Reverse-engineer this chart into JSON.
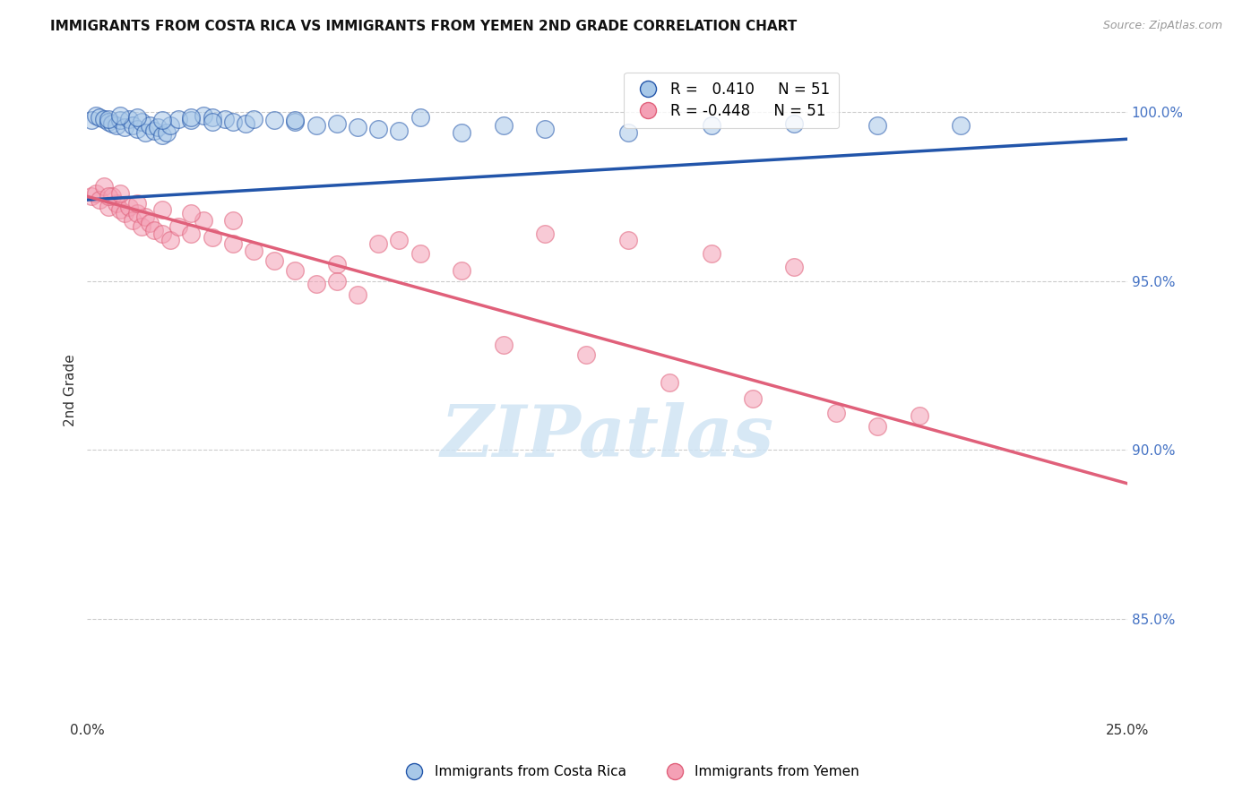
{
  "title": "IMMIGRANTS FROM COSTA RICA VS IMMIGRANTS FROM YEMEN 2ND GRADE CORRELATION CHART",
  "source": "Source: ZipAtlas.com",
  "ylabel": "2nd Grade",
  "x_min": 0.0,
  "x_max": 0.25,
  "y_min": 0.82,
  "y_max": 1.015,
  "y_ticks": [
    0.85,
    0.9,
    0.95,
    1.0
  ],
  "y_tick_labels": [
    "85.0%",
    "90.0%",
    "95.0%",
    "100.0%"
  ],
  "x_ticks": [
    0.0,
    0.05,
    0.1,
    0.15,
    0.2,
    0.25
  ],
  "x_tick_labels": [
    "0.0%",
    "",
    "",
    "",
    "",
    "25.0%"
  ],
  "color_blue": "#a8c8e8",
  "color_pink": "#f4a0b5",
  "line_blue": "#2255aa",
  "line_pink": "#e0607a",
  "watermark_text": "ZIPatlas",
  "watermark_color": "#d0e4f4",
  "blue_intercept": 0.974,
  "blue_slope_total": 0.018,
  "pink_intercept": 0.975,
  "pink_slope_total": -0.085,
  "blue_x": [
    0.001,
    0.002,
    0.003,
    0.004,
    0.005,
    0.006,
    0.007,
    0.008,
    0.009,
    0.01,
    0.011,
    0.012,
    0.013,
    0.014,
    0.015,
    0.016,
    0.017,
    0.018,
    0.019,
    0.02,
    0.022,
    0.025,
    0.028,
    0.03,
    0.033,
    0.035,
    0.038,
    0.04,
    0.045,
    0.05,
    0.055,
    0.06,
    0.065,
    0.07,
    0.075,
    0.08,
    0.09,
    0.1,
    0.11,
    0.13,
    0.15,
    0.17,
    0.19,
    0.21,
    0.005,
    0.008,
    0.012,
    0.018,
    0.025,
    0.03,
    0.05
  ],
  "blue_y": [
    0.9975,
    0.999,
    0.9985,
    0.998,
    0.997,
    0.9965,
    0.996,
    0.9975,
    0.9955,
    0.998,
    0.996,
    0.995,
    0.997,
    0.994,
    0.996,
    0.9945,
    0.9955,
    0.993,
    0.994,
    0.996,
    0.998,
    0.9975,
    0.999,
    0.9985,
    0.998,
    0.997,
    0.9965,
    0.998,
    0.9975,
    0.997,
    0.996,
    0.9965,
    0.9955,
    0.995,
    0.9945,
    0.9985,
    0.994,
    0.996,
    0.995,
    0.994,
    0.996,
    0.9965,
    0.996,
    0.996,
    0.998,
    0.999,
    0.9985,
    0.9975,
    0.9985,
    0.997,
    0.9975
  ],
  "pink_x": [
    0.001,
    0.002,
    0.003,
    0.004,
    0.005,
    0.006,
    0.007,
    0.008,
    0.009,
    0.01,
    0.011,
    0.012,
    0.013,
    0.014,
    0.015,
    0.016,
    0.018,
    0.02,
    0.022,
    0.025,
    0.028,
    0.03,
    0.035,
    0.04,
    0.045,
    0.05,
    0.055,
    0.06,
    0.065,
    0.07,
    0.075,
    0.08,
    0.09,
    0.1,
    0.11,
    0.12,
    0.13,
    0.14,
    0.15,
    0.16,
    0.17,
    0.18,
    0.19,
    0.2,
    0.005,
    0.008,
    0.012,
    0.018,
    0.025,
    0.035,
    0.06
  ],
  "pink_y": [
    0.975,
    0.976,
    0.974,
    0.978,
    0.972,
    0.975,
    0.973,
    0.971,
    0.97,
    0.972,
    0.968,
    0.97,
    0.966,
    0.969,
    0.967,
    0.965,
    0.964,
    0.962,
    0.966,
    0.964,
    0.968,
    0.963,
    0.961,
    0.959,
    0.956,
    0.953,
    0.949,
    0.955,
    0.946,
    0.961,
    0.962,
    0.958,
    0.953,
    0.931,
    0.964,
    0.928,
    0.962,
    0.92,
    0.958,
    0.915,
    0.954,
    0.911,
    0.907,
    0.91,
    0.975,
    0.976,
    0.973,
    0.971,
    0.97,
    0.968,
    0.95
  ]
}
